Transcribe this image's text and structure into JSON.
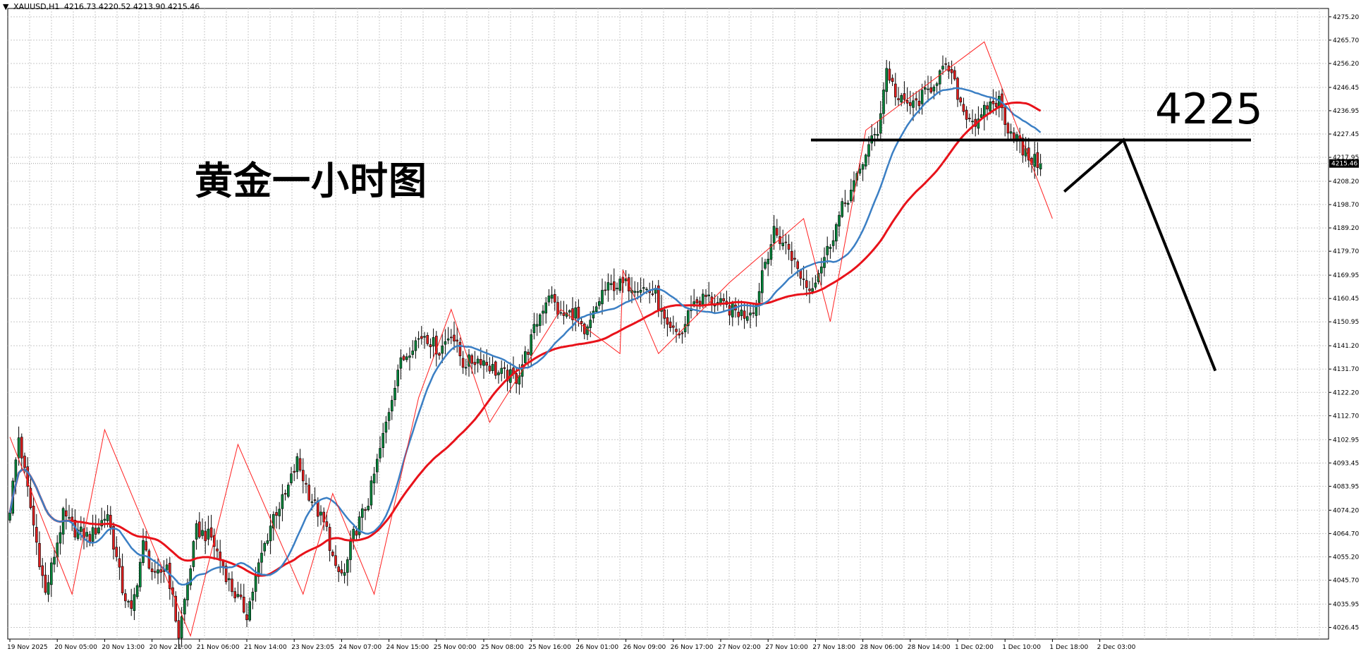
{
  "header": {
    "arrow": "▼",
    "symbol": "XAUUSD,H1",
    "ohlc": "4216.73 4220.52 4213.90 4215.46"
  },
  "annotations": {
    "title": "黄金一小时图",
    "level": "4225"
  },
  "current_price_label": "4215.46",
  "colors": {
    "bull": "#00843a",
    "bear": "#e01e1e",
    "ma_fast": "#3b7fc4",
    "ma_slow": "#e8121a",
    "zigzag": "#ff2020",
    "grid": "#c8c8c8",
    "annotation": "#000000"
  },
  "chart_data": {
    "type": "candlestick",
    "symbol": "XAUUSD",
    "timeframe": "H1",
    "ylim": [
      4021.7,
      4278.6
    ],
    "grid": true,
    "y_ticks": [
      "4275.20",
      "4265.70",
      "4256.20",
      "4246.45",
      "4236.95",
      "4227.45",
      "4217.95",
      "4208.20",
      "4198.70",
      "4189.20",
      "4179.70",
      "4169.95",
      "4160.45",
      "4150.95",
      "4141.20",
      "4131.70",
      "4122.20",
      "4112.70",
      "4102.95",
      "4093.45",
      "4083.95",
      "4074.20",
      "4064.70",
      "4055.20",
      "4045.70",
      "4035.95",
      "4026.45"
    ],
    "x_ticks": [
      "19 Nov 2025",
      "20 Nov 05:00",
      "20 Nov 13:00",
      "20 Nov 21:00",
      "21 Nov 06:00",
      "21 Nov 14:00",
      "23 Nov 23:05",
      "24 Nov 07:00",
      "24 Nov 15:00",
      "25 Nov 00:00",
      "25 Nov 08:00",
      "25 Nov 16:00",
      "26 Nov 01:00",
      "26 Nov 09:00",
      "26 Nov 17:00",
      "27 Nov 02:00",
      "27 Nov 10:00",
      "27 Nov 18:00",
      "28 Nov 06:00",
      "28 Nov 14:00",
      "1 Dec 02:00",
      "1 Dec 10:00",
      "1 Dec 18:00",
      "2 Dec 03:00"
    ],
    "anchors": [
      [
        0,
        4075
      ],
      [
        3,
        4104
      ],
      [
        8,
        4068
      ],
      [
        12,
        4040
      ],
      [
        18,
        4072
      ],
      [
        22,
        4066
      ],
      [
        27,
        4063
      ],
      [
        33,
        4073
      ],
      [
        38,
        4042
      ],
      [
        41,
        4032
      ],
      [
        45,
        4060
      ],
      [
        49,
        4046
      ],
      [
        53,
        4052
      ],
      [
        57,
        4023
      ],
      [
        63,
        4066
      ],
      [
        68,
        4063
      ],
      [
        75,
        4042
      ],
      [
        80,
        4032
      ],
      [
        85,
        4056
      ],
      [
        89,
        4072
      ],
      [
        93,
        4080
      ],
      [
        97,
        4094
      ],
      [
        101,
        4081
      ],
      [
        107,
        4066
      ],
      [
        110,
        4049
      ],
      [
        113,
        4048
      ],
      [
        116,
        4064
      ],
      [
        121,
        4078
      ],
      [
        126,
        4104
      ],
      [
        131,
        4132
      ],
      [
        136,
        4142
      ],
      [
        140,
        4146
      ],
      [
        145,
        4139
      ],
      [
        149,
        4147
      ],
      [
        153,
        4134
      ],
      [
        159,
        4136
      ],
      [
        165,
        4130
      ],
      [
        171,
        4128
      ],
      [
        175,
        4140
      ],
      [
        178,
        4151
      ],
      [
        182,
        4163
      ],
      [
        186,
        4153
      ],
      [
        191,
        4155
      ],
      [
        194,
        4144
      ],
      [
        200,
        4163
      ],
      [
        204,
        4166
      ],
      [
        212,
        4166
      ],
      [
        218,
        4162
      ],
      [
        222,
        4147
      ],
      [
        227,
        4146
      ],
      [
        230,
        4158
      ],
      [
        235,
        4161
      ],
      [
        241,
        4157
      ],
      [
        248,
        4154
      ],
      [
        252,
        4158
      ],
      [
        254,
        4172
      ],
      [
        258,
        4187
      ],
      [
        263,
        4181
      ],
      [
        266,
        4172
      ],
      [
        270,
        4164
      ],
      [
        276,
        4180
      ],
      [
        281,
        4197
      ],
      [
        286,
        4209
      ],
      [
        289,
        4220
      ],
      [
        293,
        4229
      ],
      [
        296,
        4254
      ],
      [
        300,
        4241
      ],
      [
        305,
        4239
      ],
      [
        310,
        4245
      ],
      [
        314,
        4252
      ],
      [
        317,
        4254
      ],
      [
        322,
        4237
      ],
      [
        327,
        4231
      ],
      [
        330,
        4239
      ],
      [
        334,
        4241
      ],
      [
        337,
        4230
      ],
      [
        340,
        4226
      ],
      [
        342,
        4220
      ],
      [
        345,
        4217
      ],
      [
        348,
        4215
      ]
    ],
    "series": [
      {
        "name": "XAUUSD",
        "type": "candlestick"
      },
      {
        "type": "line",
        "style": "moving-average-fast"
      },
      {
        "type": "line",
        "style": "moving-average-slow"
      },
      {
        "type": "line",
        "style": "zigzag",
        "points": [
          [
            0,
            4104
          ],
          [
            21,
            4040
          ],
          [
            32,
            4107
          ],
          [
            61,
            4023
          ],
          [
            77,
            4101
          ],
          [
            99,
            4040
          ],
          [
            109,
            4081
          ],
          [
            123,
            4040
          ],
          [
            138,
            4120
          ],
          [
            149,
            4156
          ],
          [
            162,
            4110
          ],
          [
            186,
            4156
          ],
          [
            206,
            4138
          ],
          [
            207,
            4172
          ],
          [
            219,
            4138
          ],
          [
            243,
            4167
          ],
          [
            268,
            4193
          ],
          [
            277,
            4151
          ],
          [
            289,
            4229
          ],
          [
            329,
            4265
          ],
          [
            352,
            4193
          ]
        ]
      }
    ],
    "current_price": 4215.46,
    "annotation_lines": [
      {
        "kind": "horizontal",
        "value": 4225
      },
      {
        "kind": "projection",
        "points": [
          [
            356,
            4204
          ],
          [
            376,
            4225
          ],
          [
            407,
            4131
          ]
        ]
      }
    ]
  }
}
